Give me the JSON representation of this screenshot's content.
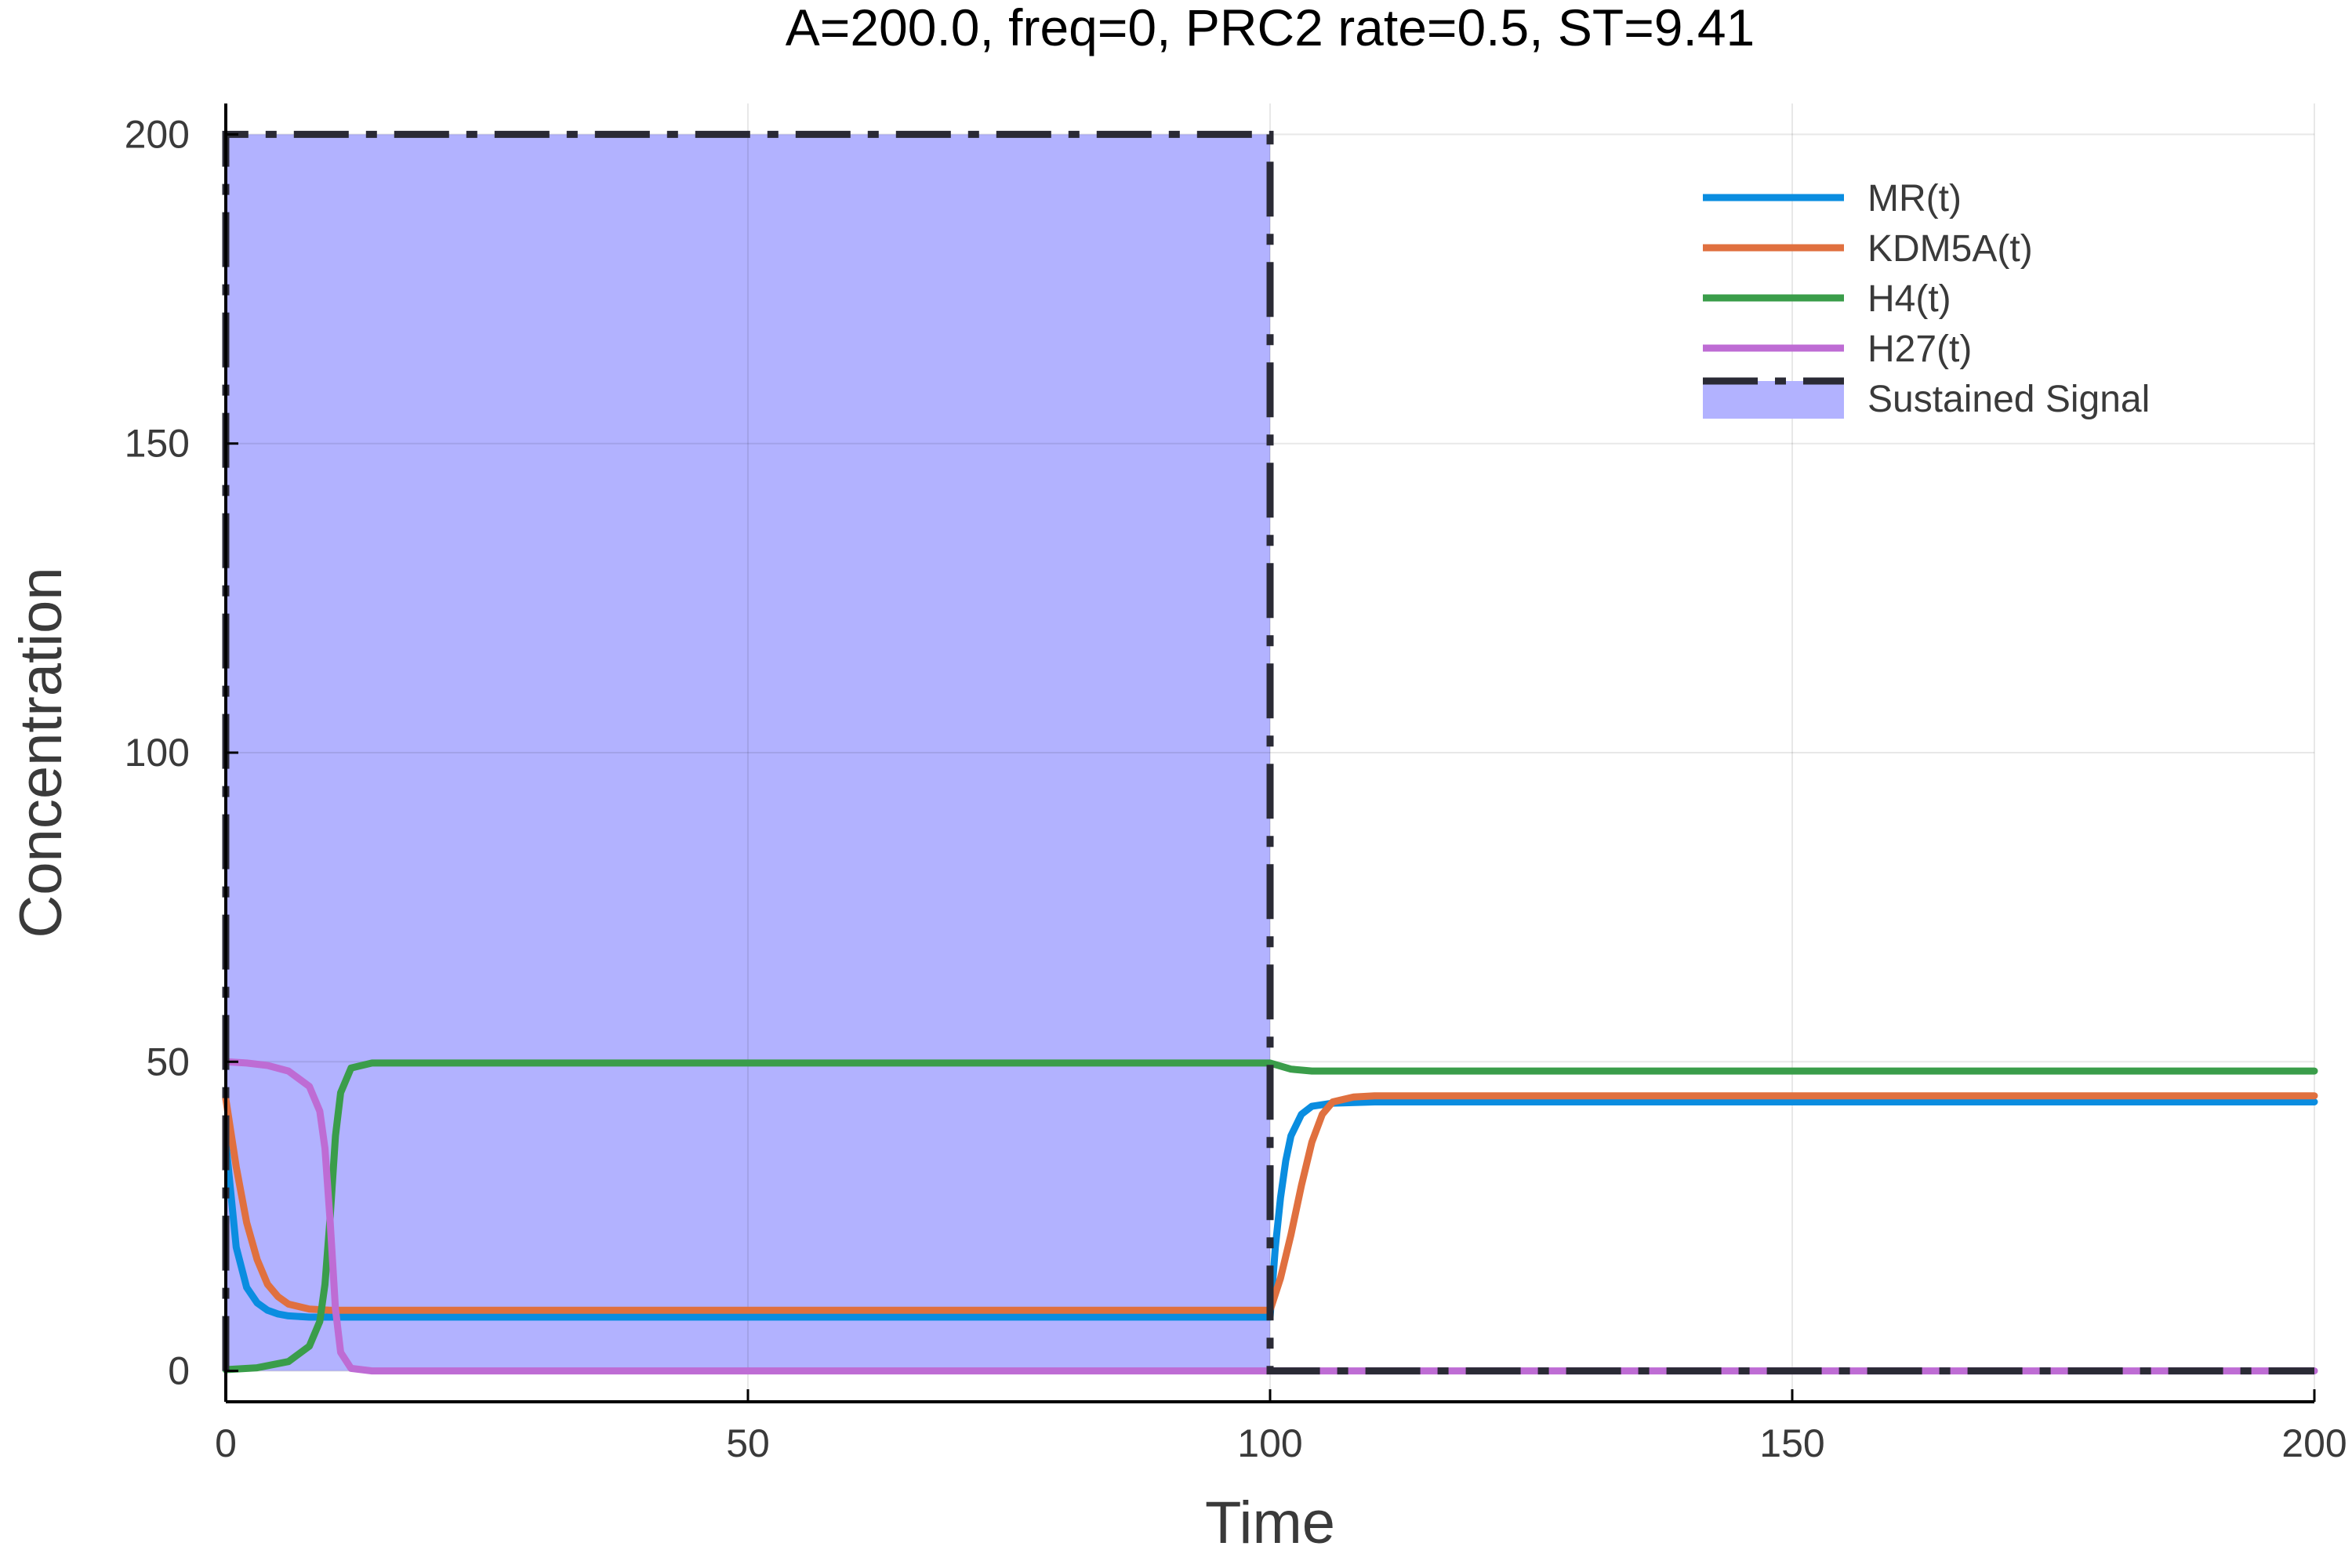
{
  "chart_data": {
    "type": "line",
    "title": "A=200.0, freq=0, PRC2 rate=0.5,  ST=9.41",
    "xlabel": "Time",
    "ylabel": "Concentration",
    "xlim": [
      0,
      200
    ],
    "ylim": [
      -5,
      205
    ],
    "xticks": [
      0,
      50,
      100,
      150,
      200
    ],
    "yticks": [
      0,
      50,
      100,
      150,
      200
    ],
    "grid": true,
    "legend_position": "top-right",
    "signal_window": {
      "start": 0,
      "end": 100,
      "amplitude": 200
    },
    "series": [
      {
        "name": "MR(t)",
        "color": "#0a8de0",
        "x": [
          0,
          1,
          2,
          3,
          4,
          5,
          6,
          8,
          10,
          100,
          100.5,
          101,
          101.5,
          102,
          103,
          104,
          106,
          110,
          150,
          200
        ],
        "y": [
          37,
          20,
          13.5,
          11,
          9.8,
          9.2,
          8.9,
          8.7,
          8.7,
          8.7,
          20,
          28,
          34,
          38,
          41.5,
          42.8,
          43.3,
          43.5,
          43.5,
          43.5
        ]
      },
      {
        "name": "KDM5A(t)",
        "color": "#e0703f",
        "x": [
          0,
          1,
          2,
          3,
          4,
          5,
          6,
          8,
          10,
          100,
          101,
          102,
          103,
          104,
          105,
          106,
          108,
          110,
          150,
          200
        ],
        "y": [
          44,
          33,
          24,
          18,
          14,
          12,
          10.8,
          10,
          9.8,
          9.8,
          15,
          22,
          30,
          37,
          41.5,
          43.5,
          44.3,
          44.5,
          44.5,
          44.5
        ]
      },
      {
        "name": "H4(t)",
        "color": "#3a9d4a",
        "x": [
          0,
          3,
          6,
          8,
          9,
          9.5,
          10,
          10.5,
          11,
          12,
          14,
          100,
          101,
          102,
          104,
          110,
          150,
          200
        ],
        "y": [
          0.2,
          0.5,
          1.5,
          4,
          8,
          14,
          25,
          38,
          45,
          49,
          49.8,
          49.8,
          49.3,
          48.8,
          48.5,
          48.5,
          48.5,
          48.5
        ]
      },
      {
        "name": "H27(t)",
        "color": "#be6cd4",
        "x": [
          0,
          2,
          4,
          6,
          8,
          9,
          9.5,
          10,
          10.5,
          11,
          12,
          14,
          100,
          200
        ],
        "y": [
          50,
          49.8,
          49.4,
          48.5,
          46,
          42,
          36,
          24,
          10,
          3,
          0.4,
          0,
          0,
          0
        ]
      },
      {
        "name": "Sustained Signal",
        "color": "#2a2a35",
        "fill": "#b2b2ff",
        "x": [
          0,
          0,
          100,
          100,
          200
        ],
        "y": [
          0,
          200,
          200,
          0,
          0
        ]
      }
    ]
  }
}
